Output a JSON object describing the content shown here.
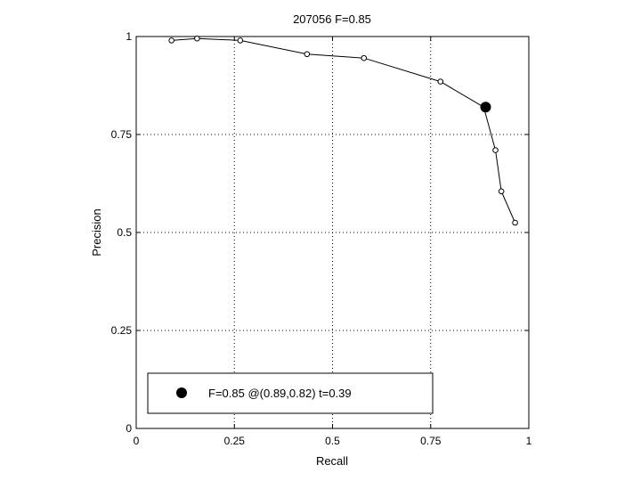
{
  "chart_data": {
    "type": "line",
    "title": "207056 F=0.85",
    "xlabel": "Recall",
    "ylabel": "Precision",
    "xlim": [
      0,
      1
    ],
    "ylim": [
      0,
      1
    ],
    "xticks": [
      0,
      0.25,
      0.5,
      0.75,
      1
    ],
    "yticks": [
      0,
      0.25,
      0.5,
      0.75,
      1
    ],
    "xtick_labels": [
      "0",
      "0.25",
      "0.5",
      "0.75",
      "1"
    ],
    "ytick_labels": [
      "0",
      "0.25",
      "0.5",
      "0.75",
      "1"
    ],
    "grid": true,
    "legend_position": "bottom-left",
    "series": [
      {
        "x": [
          0.09,
          0.155,
          0.265,
          0.435,
          0.58,
          0.775,
          0.885,
          0.915,
          0.93,
          0.965
        ],
        "y": [
          0.99,
          0.995,
          0.99,
          0.955,
          0.945,
          0.885,
          0.82,
          0.71,
          0.605,
          0.525
        ],
        "color": "#000000"
      }
    ],
    "highlight_point": {
      "x": 0.89,
      "y": 0.82,
      "label": "F=0.85 @(0.89,0.82) t=0.39"
    }
  }
}
